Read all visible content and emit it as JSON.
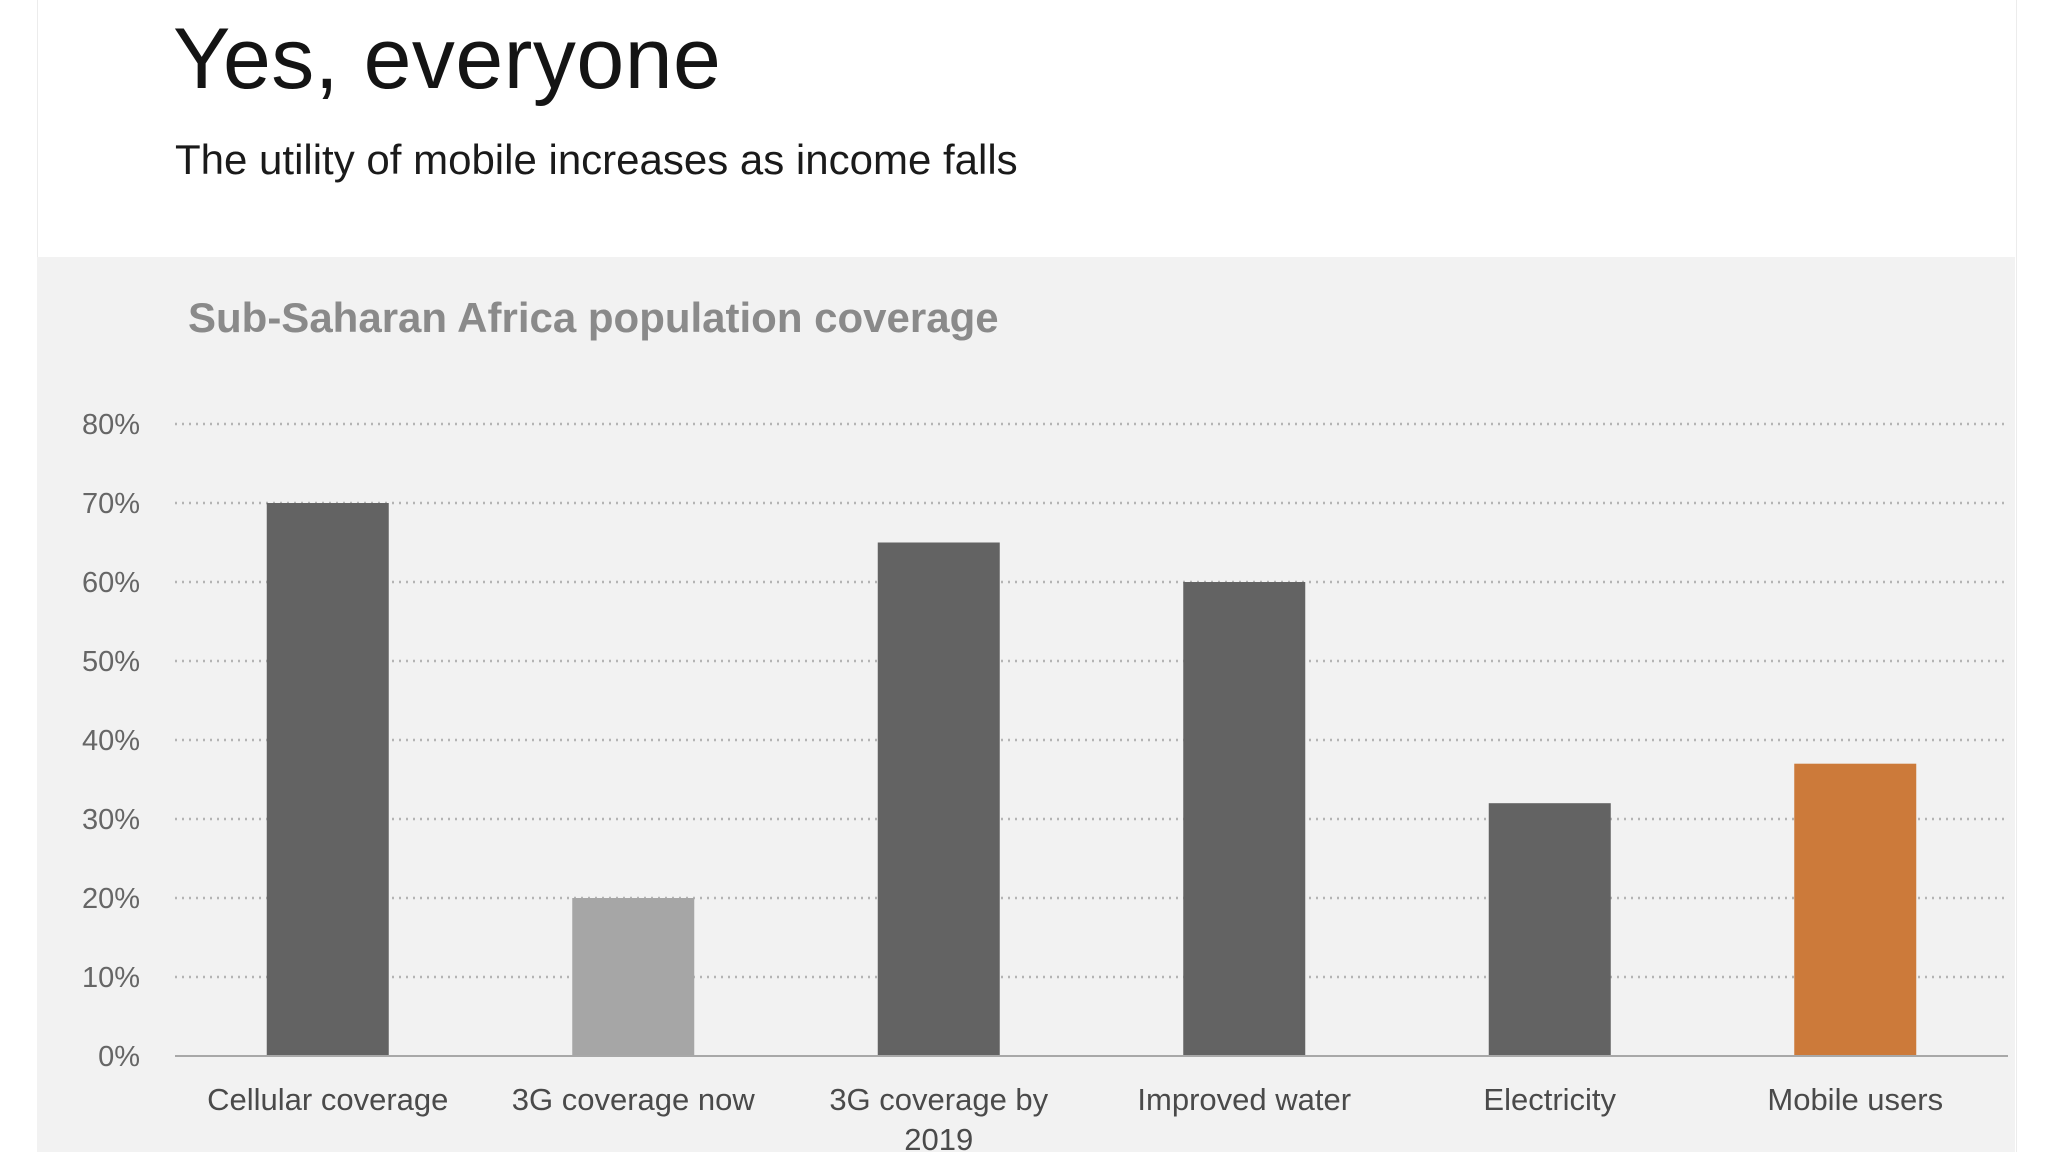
{
  "slide": {
    "title": "Yes, everyone",
    "subtitle": "The utility of mobile increases as income falls"
  },
  "chart_data": {
    "type": "bar",
    "title": "Sub-Saharan Africa population coverage",
    "categories": [
      "Cellular coverage",
      "3G coverage now",
      "3G coverage by 2019",
      "Improved water",
      "Electricity",
      "Mobile users"
    ],
    "category_lines": [
      [
        "Cellular coverage"
      ],
      [
        "3G coverage now"
      ],
      [
        "3G coverage by",
        "2019"
      ],
      [
        "Improved water"
      ],
      [
        "Electricity"
      ],
      [
        "Mobile users"
      ]
    ],
    "values": [
      70,
      20,
      65,
      60,
      32,
      37
    ],
    "colors": [
      "#636363",
      "#a6a6a6",
      "#636363",
      "#636363",
      "#636363",
      "#cc7a3a"
    ],
    "yticks": [
      "0%",
      "10%",
      "20%",
      "30%",
      "40%",
      "50%",
      "60%",
      "70%",
      "80%"
    ],
    "ylim": [
      0,
      80
    ],
    "ystep": 10,
    "grid": true,
    "grid_style": "dotted",
    "xlabel": "",
    "ylabel": ""
  }
}
